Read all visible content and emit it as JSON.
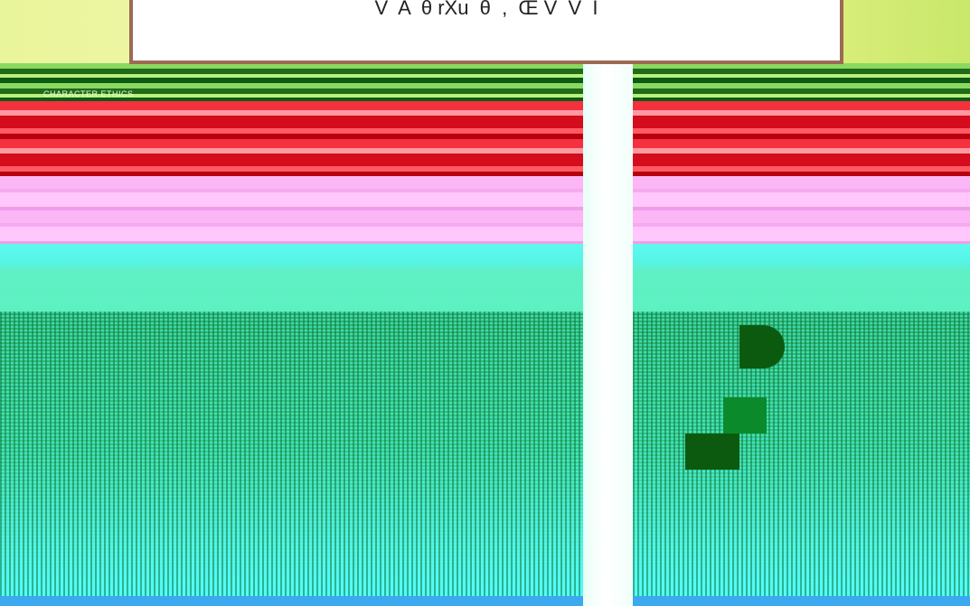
{
  "banner": {
    "text": "V  A  θ rXu  θ  ,  Œ V  V  I"
  },
  "sign": {
    "text": "CHARACTER ETHICS"
  }
}
